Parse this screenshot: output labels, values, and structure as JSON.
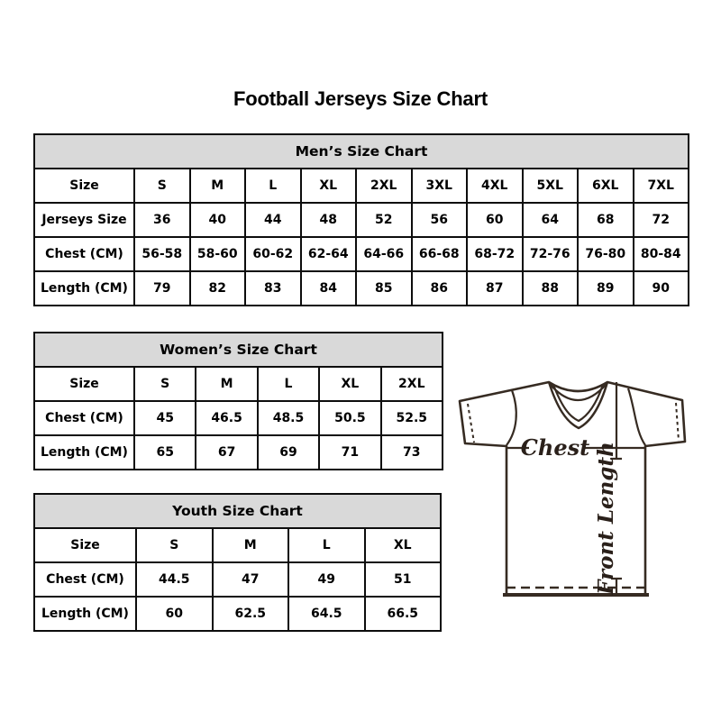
{
  "page": {
    "title": "Football Jerseys Size Chart"
  },
  "chart_data": [
    {
      "type": "table",
      "id": "men",
      "title": "Men’s Size Chart",
      "rows": [
        {
          "label": "Size",
          "values": [
            "S",
            "M",
            "L",
            "XL",
            "2XL",
            "3XL",
            "4XL",
            "5XL",
            "6XL",
            "7XL"
          ]
        },
        {
          "label": "Jerseys Size",
          "values": [
            "36",
            "40",
            "44",
            "48",
            "52",
            "56",
            "60",
            "64",
            "68",
            "72"
          ]
        },
        {
          "label": "Chest (CM)",
          "values": [
            "56-58",
            "58-60",
            "60-62",
            "62-64",
            "64-66",
            "66-68",
            "68-72",
            "72-76",
            "76-80",
            "80-84"
          ]
        },
        {
          "label": "Length (CM)",
          "values": [
            "79",
            "82",
            "83",
            "84",
            "85",
            "86",
            "87",
            "88",
            "89",
            "90"
          ]
        }
      ]
    },
    {
      "type": "table",
      "id": "women",
      "title": "Women’s Size Chart",
      "rows": [
        {
          "label": "Size",
          "values": [
            "S",
            "M",
            "L",
            "XL",
            "2XL"
          ]
        },
        {
          "label": "Chest (CM)",
          "values": [
            "45",
            "46.5",
            "48.5",
            "50.5",
            "52.5"
          ]
        },
        {
          "label": "Length (CM)",
          "values": [
            "65",
            "67",
            "69",
            "71",
            "73"
          ]
        }
      ]
    },
    {
      "type": "table",
      "id": "youth",
      "title": "Youth Size Chart",
      "rows": [
        {
          "label": "Size",
          "values": [
            "S",
            "M",
            "L",
            "XL"
          ]
        },
        {
          "label": "Chest (CM)",
          "values": [
            "44.5",
            "47",
            "49",
            "51"
          ]
        },
        {
          "label": "Length (CM)",
          "values": [
            "60",
            "62.5",
            "64.5",
            "66.5"
          ]
        }
      ]
    }
  ],
  "diagram": {
    "chest_label": "Chest",
    "front_length_label": "Front Length"
  },
  "colors": {
    "header_bg": "#d9d9d9",
    "table_border": "#0d0d0d",
    "jersey_line": "#362b22",
    "text": "#000000"
  }
}
